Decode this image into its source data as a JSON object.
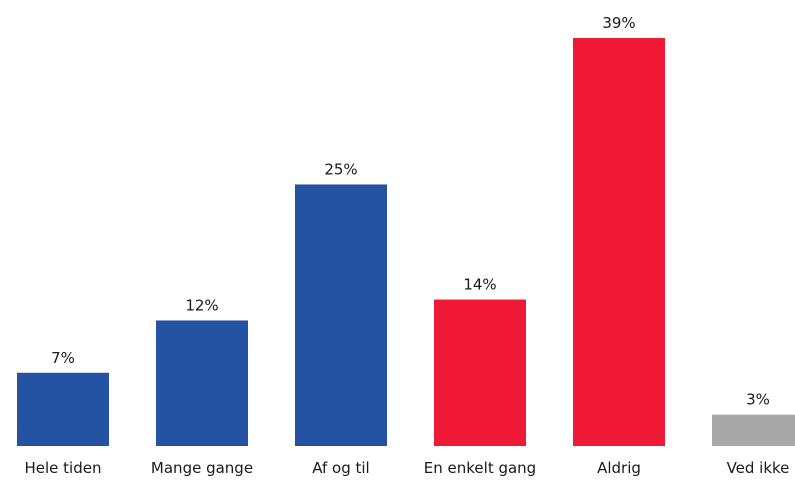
{
  "chart_data": {
    "type": "bar",
    "categories": [
      "Hele tiden",
      "Mange gange",
      "Af og til",
      "En enkelt gang",
      "Aldrig",
      "Ved ikke"
    ],
    "values": [
      7,
      12,
      25,
      14,
      39,
      3
    ],
    "value_labels": [
      "7%",
      "12%",
      "25%",
      "14%",
      "39%",
      "3%"
    ],
    "bar_colors": [
      "#2553a3",
      "#2553a3",
      "#2553a3",
      "#f01a37",
      "#f01a37",
      "#a8a8a8"
    ],
    "unit": "%",
    "ylim": [
      0,
      39
    ],
    "grid": false,
    "legend": "none"
  }
}
